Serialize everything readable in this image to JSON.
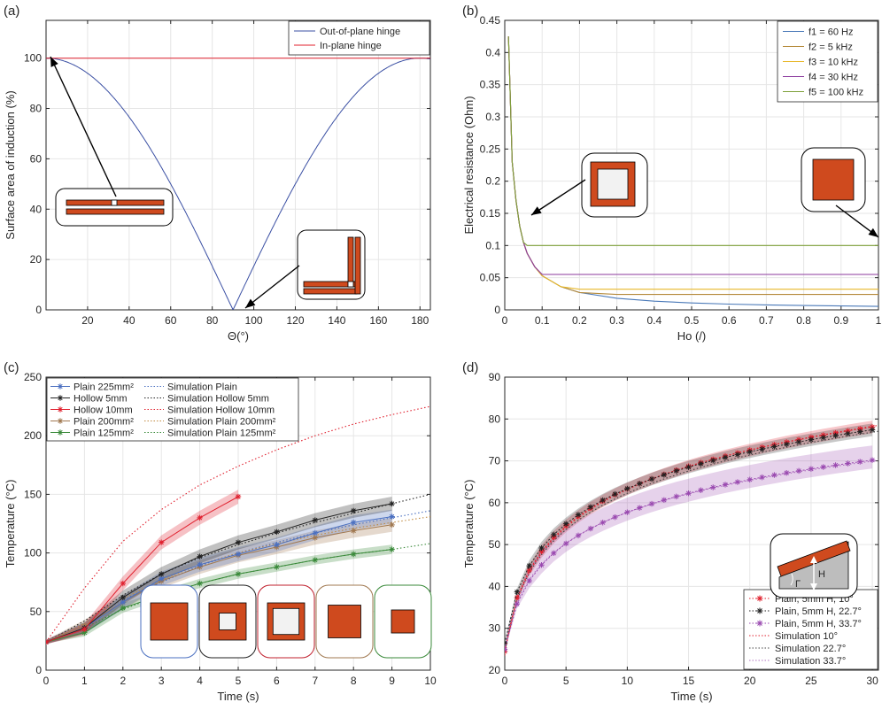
{
  "chart_data": [
    {
      "id": "a",
      "type": "line",
      "panel_label": "(a)",
      "xlabel": "Θ(°)",
      "ylabel": "Surface area of induction (%)",
      "xlim": [
        0,
        185
      ],
      "ylim": [
        0,
        115
      ],
      "xticks": [
        20,
        40,
        60,
        80,
        100,
        120,
        140,
        160,
        180
      ],
      "yticks": [
        0,
        20,
        40,
        60,
        80,
        100
      ],
      "grid": true,
      "legend_position": "top-right",
      "series": [
        {
          "name": "Out-of-plane hinge",
          "color": "#3a4fa3",
          "function": "abs_cos_deg",
          "x_range": [
            0,
            185
          ]
        },
        {
          "name": "In-plane hinge",
          "color": "#e0202e",
          "x": [
            0,
            185
          ],
          "y": [
            100,
            100
          ]
        }
      ],
      "annotations": [
        "In-plane hinge schematic",
        "Out-of-plane hinge schematic"
      ]
    },
    {
      "id": "b",
      "type": "line",
      "panel_label": "(b)",
      "xlabel": "Ho (/)",
      "ylabel": "Electrical resistance (Ohm)",
      "xlim": [
        0,
        1
      ],
      "ylim": [
        0,
        0.45
      ],
      "xticks": [
        0,
        0.1,
        0.2,
        0.3,
        0.4,
        0.5,
        0.6,
        0.7,
        0.8,
        0.9,
        1
      ],
      "xticklabels": [
        "0",
        "0.1",
        "0.2",
        "0.3",
        "0.4",
        "0.5",
        "0.6",
        "0.7",
        "0.8",
        "0.9",
        "1"
      ],
      "yticks": [
        0,
        0.05,
        0.1,
        0.15,
        0.2,
        0.25,
        0.3,
        0.35,
        0.4,
        0.45
      ],
      "yticklabels": [
        "0",
        "0.05",
        "0.1",
        "0.15",
        "0.2",
        "0.25",
        "0.3",
        "0.35",
        "0.4",
        "0.45"
      ],
      "grid": true,
      "legend_position": "top-right",
      "series": [
        {
          "name": "f1 = 60 Hz",
          "color": "#4a79b8",
          "floor": 0,
          "x": [
            0.01,
            0.02,
            0.03,
            0.04,
            0.05,
            0.06,
            0.08,
            0.1,
            0.15,
            0.2,
            0.3,
            0.4,
            0.5,
            0.6,
            0.7,
            0.8,
            0.9,
            1.0
          ],
          "y": [
            0.425,
            0.23,
            0.17,
            0.13,
            0.105,
            0.088,
            0.067,
            0.053,
            0.036,
            0.027,
            0.018,
            0.0135,
            0.0108,
            0.009,
            0.0077,
            0.0067,
            0.006,
            0.0054
          ]
        },
        {
          "name": "f2 = 5 kHz",
          "color": "#b58a3a",
          "floor": 0.024,
          "x": [
            0.01,
            0.02,
            0.03,
            0.04,
            0.05,
            0.06,
            0.08,
            0.1,
            0.15,
            0.2,
            0.3,
            0.4,
            0.5,
            0.6,
            0.7,
            0.8,
            0.9,
            1.0
          ],
          "y": [
            0.425,
            0.23,
            0.17,
            0.13,
            0.105,
            0.088,
            0.067,
            0.053,
            0.036,
            0.027,
            0.024,
            0.024,
            0.024,
            0.024,
            0.024,
            0.024,
            0.024,
            0.024
          ]
        },
        {
          "name": "f3 = 10 kHz",
          "color": "#e8b82a",
          "floor": 0.032,
          "x": [
            0.01,
            0.02,
            0.03,
            0.04,
            0.05,
            0.06,
            0.08,
            0.1,
            0.15,
            0.2,
            0.3,
            0.4,
            0.5,
            0.6,
            0.7,
            0.8,
            0.9,
            1.0
          ],
          "y": [
            0.425,
            0.23,
            0.17,
            0.13,
            0.105,
            0.088,
            0.067,
            0.053,
            0.036,
            0.032,
            0.032,
            0.032,
            0.032,
            0.032,
            0.032,
            0.032,
            0.032,
            0.032
          ]
        },
        {
          "name": "f4 = 30 kHz",
          "color": "#8b3a9e",
          "floor": 0.055,
          "x": [
            0.01,
            0.02,
            0.03,
            0.04,
            0.05,
            0.06,
            0.08,
            0.1,
            0.15,
            0.2,
            0.3,
            0.4,
            0.5,
            0.6,
            0.7,
            0.8,
            0.9,
            1.0
          ],
          "y": [
            0.425,
            0.23,
            0.17,
            0.13,
            0.105,
            0.088,
            0.067,
            0.055,
            0.055,
            0.055,
            0.055,
            0.055,
            0.055,
            0.055,
            0.055,
            0.055,
            0.055,
            0.055
          ]
        },
        {
          "name": "f5 = 100 kHz",
          "color": "#7fa03a",
          "floor": 0.1,
          "x": [
            0.01,
            0.02,
            0.03,
            0.04,
            0.05,
            0.06,
            0.08,
            0.1,
            0.15,
            0.2,
            0.3,
            0.4,
            0.5,
            0.6,
            0.7,
            0.8,
            0.9,
            1.0
          ],
          "y": [
            0.425,
            0.23,
            0.17,
            0.13,
            0.105,
            0.1,
            0.1,
            0.1,
            0.1,
            0.1,
            0.1,
            0.1,
            0.1,
            0.1,
            0.1,
            0.1,
            0.1,
            0.1
          ]
        }
      ],
      "annotations": [
        "Hollow cross-section",
        "Plain cross-section"
      ]
    },
    {
      "id": "c",
      "type": "line",
      "panel_label": "(c)",
      "xlabel": "Time (s)",
      "ylabel": "Temperature (°C)",
      "xlim": [
        0,
        10
      ],
      "ylim": [
        0,
        250
      ],
      "xticks": [
        0,
        1,
        2,
        3,
        4,
        5,
        6,
        7,
        8,
        9,
        10
      ],
      "yticks": [
        0,
        50,
        100,
        150,
        200,
        250
      ],
      "grid": true,
      "legend_position": "top-left",
      "series": [
        {
          "name": "Plain 225mm²",
          "color": "#4a6fc0",
          "marker": "*",
          "band": 6,
          "x": [
            0,
            1,
            2,
            3,
            4,
            5,
            6,
            7,
            8,
            9
          ],
          "y": [
            24,
            36,
            58,
            78,
            90,
            99,
            107,
            117,
            126,
            131
          ]
        },
        {
          "name": "Hollow 5mm",
          "color": "#222222",
          "marker": "*",
          "band": 6,
          "x": [
            0,
            1,
            2,
            3,
            4,
            5,
            6,
            7,
            8,
            9
          ],
          "y": [
            24,
            36,
            62,
            82,
            97,
            109,
            118,
            128,
            136,
            142
          ]
        },
        {
          "name": "Hollow 10mm",
          "color": "#e0202e",
          "marker": "*",
          "band": 6,
          "x": [
            0,
            1,
            2,
            3,
            4,
            5
          ],
          "y": [
            24,
            35,
            74,
            109,
            130,
            148
          ]
        },
        {
          "name": "Plain 200mm²",
          "color": "#a07850",
          "marker": "*",
          "band": 6,
          "x": [
            0,
            1,
            2,
            3,
            4,
            5,
            6,
            7,
            8,
            9
          ],
          "y": [
            24,
            38,
            58,
            76,
            88,
            98,
            105,
            113,
            119,
            124
          ]
        },
        {
          "name": "Plain 125mm²",
          "color": "#3a8a3a",
          "marker": "*",
          "band": 4,
          "x": [
            0,
            1,
            2,
            3,
            4,
            5,
            6,
            7,
            8,
            9
          ],
          "y": [
            24,
            32,
            53,
            64,
            74,
            82,
            88,
            94,
            99,
            103
          ]
        },
        {
          "name": "Simulation Plain",
          "color": "#4a6fc0",
          "dotted": true,
          "x": [
            0,
            1,
            2,
            3,
            4,
            5,
            6,
            7,
            8,
            9,
            10
          ],
          "y": [
            24,
            40,
            60,
            75,
            89,
            100,
            109,
            117,
            124,
            130,
            136
          ]
        },
        {
          "name": "Simulation Hollow 5mm",
          "color": "#222222",
          "dotted": true,
          "x": [
            0,
            1,
            2,
            3,
            4,
            5,
            6,
            7,
            8,
            9,
            10
          ],
          "y": [
            24,
            42,
            64,
            82,
            96,
            107,
            117,
            126,
            134,
            142,
            150
          ]
        },
        {
          "name": "Simulation Hollow 10mm",
          "color": "#e0202e",
          "dotted": true,
          "x": [
            0,
            1,
            2,
            3,
            4,
            5,
            6,
            7,
            8,
            9,
            10
          ],
          "y": [
            24,
            70,
            110,
            137,
            158,
            174,
            188,
            200,
            210,
            218,
            225
          ]
        },
        {
          "name": "Simulation Plain 200mm²",
          "color": "#c08a40",
          "dotted": true,
          "x": [
            0,
            1,
            2,
            3,
            4,
            5,
            6,
            7,
            8,
            9,
            10
          ],
          "y": [
            24,
            40,
            61,
            77,
            90,
            100,
            108,
            115,
            121,
            126,
            131
          ]
        },
        {
          "name": "Simulation Plain 125mm²",
          "color": "#3a8a3a",
          "dotted": true,
          "x": [
            0,
            1,
            2,
            3,
            4,
            5,
            6,
            7,
            8,
            9,
            10
          ],
          "y": [
            24,
            36,
            52,
            64,
            74,
            82,
            88,
            94,
            99,
            103,
            108
          ]
        }
      ],
      "insets": [
        {
          "label": "Plain 225mm²",
          "frame_color": "#4a6fc0",
          "kind": "plain",
          "size": 1.0
        },
        {
          "label": "Hollow 5mm",
          "frame_color": "#222222",
          "kind": "hollow",
          "size": 1.0,
          "hole": 0.45
        },
        {
          "label": "Hollow 10mm",
          "frame_color": "#c0202e",
          "kind": "hollow",
          "size": 1.0,
          "hole": 0.7
        },
        {
          "label": "Plain 200mm²",
          "frame_color": "#a07850",
          "kind": "plain",
          "size": 0.88
        },
        {
          "label": "Plain 125mm²",
          "frame_color": "#3a8a3a",
          "kind": "plain",
          "size": 0.62
        }
      ]
    },
    {
      "id": "d",
      "type": "line",
      "panel_label": "(d)",
      "xlabel": "Time (s)",
      "ylabel": "Temperature (°C)",
      "xlim": [
        0,
        30.5
      ],
      "ylim": [
        20,
        90
      ],
      "xticks": [
        0,
        5,
        10,
        15,
        20,
        25,
        30
      ],
      "yticks": [
        20,
        30,
        40,
        50,
        60,
        70,
        80,
        90
      ],
      "grid": true,
      "legend_position": "bottom-right",
      "inset_text": [
        "Γ",
        "H"
      ],
      "series": [
        {
          "name": "Plain, 5mm H, 10°",
          "color": "#e0202e",
          "marker": "*",
          "dotted_line": true,
          "model": {
            "a": 14.0,
            "c": 24.5
          },
          "band": [
            1.5,
            1.5
          ]
        },
        {
          "name": "Plain, 5mm H, 22.7°",
          "color": "#222222",
          "marker": "*",
          "dotted_line": true,
          "model": {
            "a": 13.3,
            "c": 26.5
          },
          "band": [
            1.5,
            1.5
          ]
        },
        {
          "name": "Plain, 5mm H, 33.7°",
          "color": "#9a4ab0",
          "marker": "*",
          "dotted_line": true,
          "model": {
            "a": 11.8,
            "c": 25.0
          },
          "band": [
            2.0,
            3.5
          ]
        },
        {
          "name": "Simulation 10°",
          "color": "#e0202e",
          "dotted": true,
          "model": {
            "a": 14.3,
            "c": 23.5
          }
        },
        {
          "name": "Simulation 22.7°",
          "color": "#444444",
          "dotted": true,
          "model": {
            "a": 13.8,
            "c": 24.0
          }
        },
        {
          "name": "Simulation 33.7°",
          "color": "#b070c0",
          "dotted": true,
          "model": {
            "a": 11.6,
            "c": 25.5
          }
        }
      ]
    }
  ],
  "colors": {
    "copper": "#cf4a1e",
    "hole": "#f2f2f2",
    "grid": "#e6e6e6",
    "axis": "#262626"
  }
}
